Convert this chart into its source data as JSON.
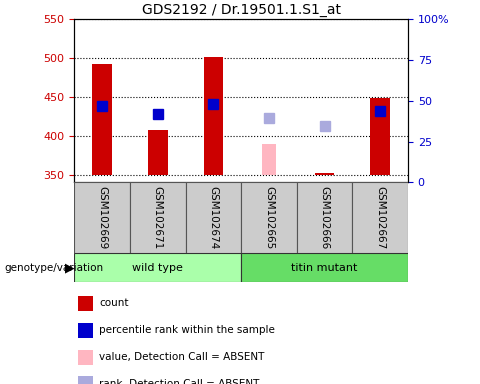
{
  "title": "GDS2192 / Dr.19501.1.S1_at",
  "samples": [
    "GSM102669",
    "GSM102671",
    "GSM102674",
    "GSM102665",
    "GSM102666",
    "GSM102667"
  ],
  "ylim_left": [
    340,
    550
  ],
  "ylim_right": [
    0,
    100
  ],
  "yticks_left": [
    350,
    400,
    450,
    500,
    550
  ],
  "yticks_right": [
    0,
    25,
    50,
    75,
    100
  ],
  "yticklabels_right": [
    "0",
    "25",
    "50",
    "75",
    "100%"
  ],
  "bar_base": 350,
  "count_values": [
    492,
    407,
    501,
    null,
    352,
    449
  ],
  "rank_values": [
    438,
    428,
    441,
    null,
    null,
    432
  ],
  "absent_value_values": [
    null,
    null,
    null,
    390,
    null,
    null
  ],
  "absent_rank_values": [
    null,
    null,
    null,
    423,
    413,
    null
  ],
  "bar_color": "#CC0000",
  "rank_color": "#0000CC",
  "absent_value_color": "#FFB6C1",
  "absent_rank_color": "#AAAADD",
  "bar_width": 0.35,
  "absent_bar_width": 0.25,
  "marker_size": 7,
  "left_axis_color": "#CC0000",
  "right_axis_color": "#0000CC",
  "group_bounds": [
    [
      0,
      3,
      "wild type",
      "#AAFFAA"
    ],
    [
      3,
      6,
      "titin mutant",
      "#66DD66"
    ]
  ],
  "bottom_label": "genotype/variation",
  "legend_items": [
    {
      "color": "#CC0000",
      "label": "count"
    },
    {
      "color": "#0000CC",
      "label": "percentile rank within the sample"
    },
    {
      "color": "#FFB6C1",
      "label": "value, Detection Call = ABSENT"
    },
    {
      "color": "#AAAADD",
      "label": "rank, Detection Call = ABSENT"
    }
  ]
}
